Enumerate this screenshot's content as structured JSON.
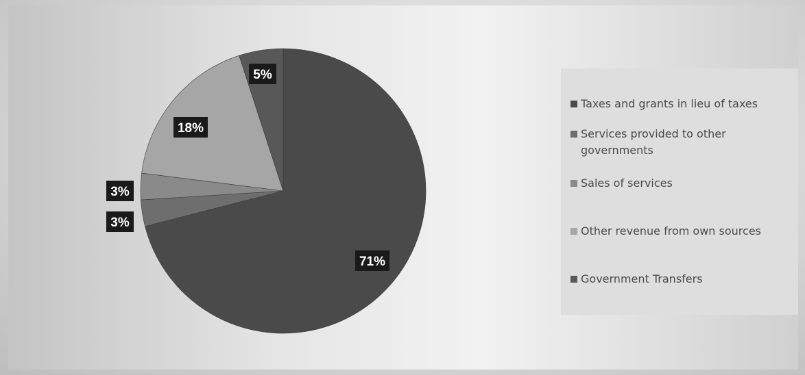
{
  "chart_data": {
    "type": "pie",
    "title": "",
    "slices": [
      {
        "label": "Taxes and grants in lieu of taxes",
        "value": 71,
        "display": "71%",
        "color": "#4a4a4a"
      },
      {
        "label": "Services provided to other governments",
        "value": 3,
        "display": "3%",
        "color": "#6e6e6e"
      },
      {
        "label": "Sales of services",
        "value": 3,
        "display": "3%",
        "color": "#8a8a8a"
      },
      {
        "label": "Other revenue from own sources",
        "value": 18,
        "display": "18%",
        "color": "#a6a6a6"
      },
      {
        "label": "Government Transfers",
        "value": 5,
        "display": "5%",
        "color": "#585858"
      }
    ],
    "legend": "right"
  }
}
